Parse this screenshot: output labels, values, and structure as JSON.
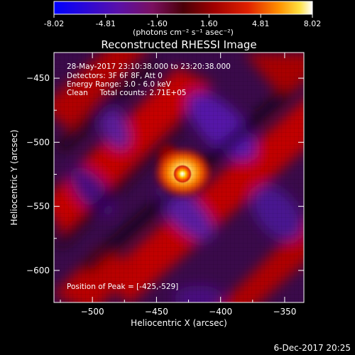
{
  "colorbar": {
    "ticks": [
      "-8.02",
      "-4.81",
      "-1.60",
      "1.60",
      "4.81",
      "8.02"
    ],
    "unit_label": "(photons cm⁻² s⁻¹ asec⁻²)",
    "range": [
      -8.02,
      8.02
    ]
  },
  "title": "Reconstructed RHESSI Image",
  "info": {
    "line1": "28-May-2017 23:10:38.000 to 23:20:38.000",
    "line2": "Detectors: 3F 6F 8F, Att 0",
    "line3": "Energy Range: 3.0 - 6.0 keV",
    "line4": "Clean     Total counts: 2.71E+05"
  },
  "peak_label": "Position of Peak = [-425,-529]",
  "footer_date": "6-Dec-2017 20:25",
  "chart_data": {
    "type": "heatmap",
    "title": "Reconstructed RHESSI Image",
    "xlabel": "Heliocentric X (arcsec)",
    "ylabel": "Heliocentric Y (arcsec)",
    "xlim": [
      -530,
      -335
    ],
    "ylim": [
      -625,
      -430
    ],
    "x_ticks": [
      -500,
      -450,
      -400,
      -350
    ],
    "y_ticks": [
      -450,
      -500,
      -550,
      -600
    ],
    "x_tick_labels": [
      "−500",
      "−450",
      "−400",
      "−350"
    ],
    "y_tick_labels": [
      "−450",
      "−500",
      "−550",
      "−600"
    ],
    "colormap": "red-temperature (blue-purple-red-yellow-white)",
    "peak_position": [
      -425,
      -529
    ],
    "peak_value": 8.02,
    "min_value": -8.02
  }
}
